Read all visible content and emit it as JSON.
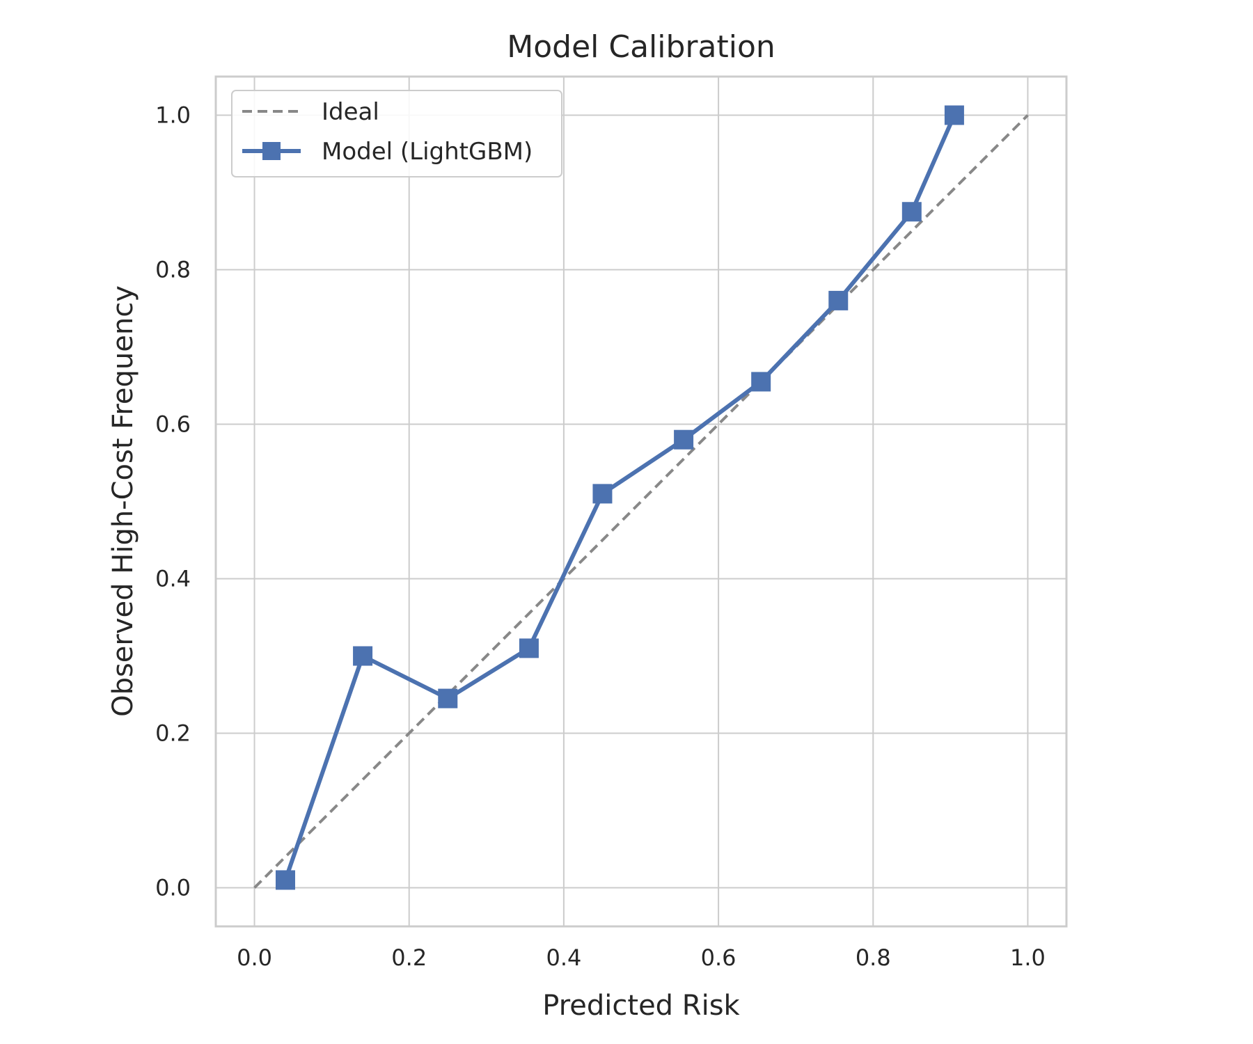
{
  "chart_data": {
    "type": "line",
    "title": "Model Calibration",
    "xlabel": "Predicted Risk",
    "ylabel": "Observed High-Cost Frequency",
    "xlim": [
      -0.05,
      1.05
    ],
    "ylim": [
      -0.05,
      1.05
    ],
    "xticks": [
      0.0,
      0.2,
      0.4,
      0.6,
      0.8,
      1.0
    ],
    "yticks": [
      0.0,
      0.2,
      0.4,
      0.6,
      0.8,
      1.0
    ],
    "xtick_labels": [
      "0.0",
      "0.2",
      "0.4",
      "0.6",
      "0.8",
      "1.0"
    ],
    "ytick_labels": [
      "0.0",
      "0.2",
      "0.4",
      "0.6",
      "0.8",
      "1.0"
    ],
    "grid": true,
    "legend_position": "top-left",
    "series": [
      {
        "name": "Ideal",
        "style": "dashed",
        "color": "#888888",
        "x": [
          0.0,
          1.0
        ],
        "y": [
          0.0,
          1.0
        ]
      },
      {
        "name": "Model (LightGBM)",
        "style": "solid",
        "marker": "square",
        "color": "#4c72b0",
        "x": [
          0.04,
          0.14,
          0.25,
          0.355,
          0.45,
          0.555,
          0.655,
          0.755,
          0.85,
          0.905
        ],
        "y": [
          0.01,
          0.3,
          0.245,
          0.31,
          0.51,
          0.58,
          0.655,
          0.76,
          0.875,
          1.0
        ]
      }
    ]
  }
}
